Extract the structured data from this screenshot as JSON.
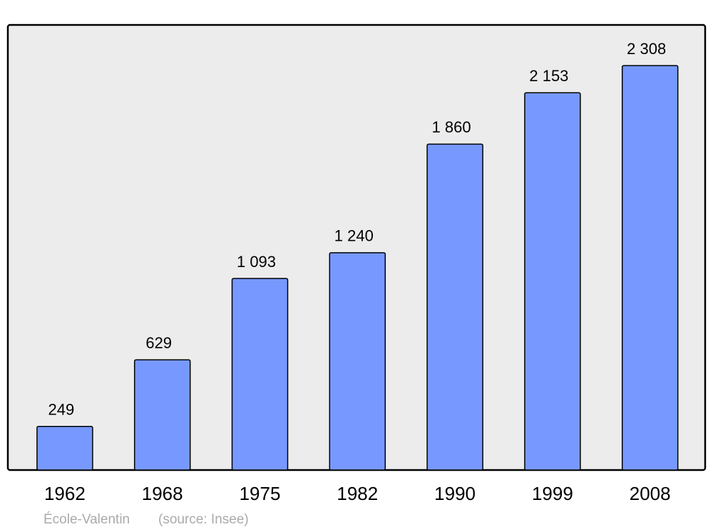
{
  "chart_data": {
    "type": "bar",
    "categories": [
      "1962",
      "1968",
      "1975",
      "1982",
      "1990",
      "1999",
      "2008"
    ],
    "values": [
      249,
      629,
      1093,
      1240,
      1860,
      2153,
      2308
    ],
    "value_labels": [
      "249",
      "629",
      "1 093",
      "1 240",
      "1 860",
      "2 153",
      "2 308"
    ],
    "color": "#7799ff",
    "ylim": [
      0,
      2540
    ],
    "place": "École-Valentin",
    "source": "(source: Insee)"
  }
}
